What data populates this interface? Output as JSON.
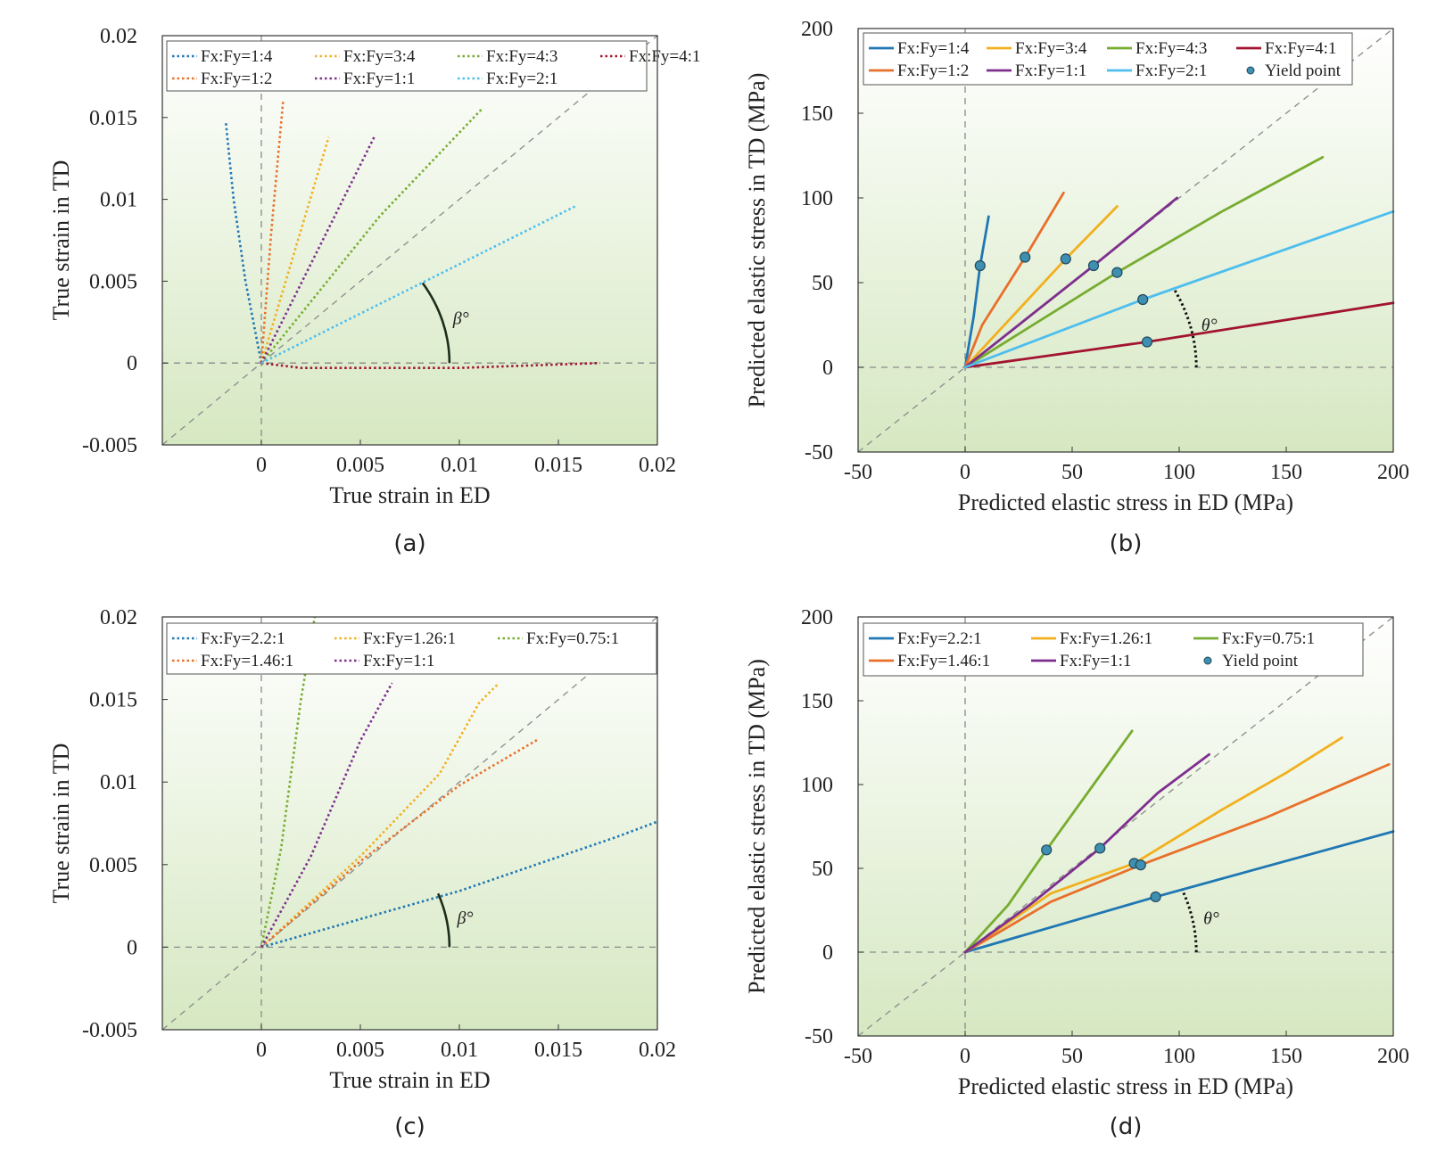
{
  "chart_data": [
    {
      "panel": "a",
      "caption": "(a)",
      "type": "line",
      "line_style": "dotted",
      "xlabel": "True strain in ED",
      "ylabel": "True strain in TD",
      "xlim": [
        -0.005,
        0.02
      ],
      "ylim": [
        -0.005,
        0.02
      ],
      "xticks": [
        0,
        0.005,
        0.01,
        0.015,
        0.02
      ],
      "xtick_labels": [
        "0",
        "0.005",
        "0.01",
        "0.015",
        "0.02"
      ],
      "yticks": [
        -0.005,
        0,
        0.005,
        0.01,
        0.015,
        0.02
      ],
      "ytick_labels": [
        "-0.005",
        "0",
        "0.005",
        "0.01",
        "0.015",
        "0.02"
      ],
      "grid": false,
      "legend_position": "top",
      "legend_columns": 4,
      "angle_label": "β°",
      "angle": {
        "r": 0.0095,
        "a0": 0,
        "a1": 31,
        "dashed": false
      },
      "series": [
        {
          "name": "Fx:Fy=1:4",
          "color": "#1f77b4",
          "points": [
            [
              0,
              0
            ],
            [
              -0.0008,
              0.005
            ],
            [
              -0.0014,
              0.01
            ],
            [
              -0.0018,
              0.0148
            ]
          ]
        },
        {
          "name": "Fx:Fy=3:4",
          "color": "#f2b01e",
          "points": [
            [
              0,
              0
            ],
            [
              0.0034,
              0.0138
            ]
          ]
        },
        {
          "name": "Fx:Fy=4:3",
          "color": "#77ac30",
          "points": [
            [
              0,
              0
            ],
            [
              0.006,
              0.009
            ],
            [
              0.0112,
              0.0156
            ]
          ]
        },
        {
          "name": "Fx:Fy=4:1",
          "color": "#a2142f",
          "points": [
            [
              0,
              0
            ],
            [
              0.002,
              -0.0003
            ],
            [
              0.01,
              -0.0003
            ],
            [
              0.0171,
              0
            ]
          ]
        },
        {
          "name": "Fx:Fy=1:2",
          "color": "#e8702a",
          "points": [
            [
              0,
              0
            ],
            [
              0.0005,
              0.008
            ],
            [
              0.0011,
              0.016
            ]
          ]
        },
        {
          "name": "Fx:Fy=1:1",
          "color": "#7e2f8e",
          "points": [
            [
              0,
              0
            ],
            [
              0.0057,
              0.0138
            ]
          ]
        },
        {
          "name": "Fx:Fy=2:1",
          "color": "#4dbeee",
          "points": [
            [
              0,
              0
            ],
            [
              0.0159,
              0.0096
            ]
          ]
        }
      ]
    },
    {
      "panel": "b",
      "caption": "(b)",
      "type": "line",
      "line_style": "solid",
      "xlabel": "Predicted elastic stress in ED (MPa)",
      "ylabel": "Predicted elastic stress in TD (MPa)",
      "xlim": [
        -50,
        200
      ],
      "ylim": [
        -50,
        200
      ],
      "xticks": [
        -50,
        0,
        50,
        100,
        150,
        200
      ],
      "xtick_labels": [
        "-50",
        "0",
        "50",
        "100",
        "150",
        "200"
      ],
      "yticks": [
        -50,
        0,
        50,
        100,
        150,
        200
      ],
      "ytick_labels": [
        "-50",
        "0",
        "50",
        "100",
        "150",
        "200"
      ],
      "grid": false,
      "legend_position": "top",
      "legend_columns": 4,
      "angle_label": "θ°",
      "angle": {
        "r": 108,
        "a0": 0,
        "a1": 25,
        "dashed": true
      },
      "series": [
        {
          "name": "Fx:Fy=1:4",
          "color": "#1f77b4",
          "points": [
            [
              0,
              0
            ],
            [
              4,
              30
            ],
            [
              7,
              60
            ],
            [
              11,
              89
            ]
          ]
        },
        {
          "name": "Fx:Fy=3:4",
          "color": "#f2b01e",
          "points": [
            [
              0,
              0
            ],
            [
              47,
              64
            ],
            [
              71,
              95
            ]
          ]
        },
        {
          "name": "Fx:Fy=4:3",
          "color": "#77ac30",
          "points": [
            [
              0,
              0
            ],
            [
              71,
              56
            ],
            [
              120,
              92
            ],
            [
              167,
              124
            ]
          ]
        },
        {
          "name": "Fx:Fy=4:1",
          "color": "#a2142f",
          "points": [
            [
              0,
              0
            ],
            [
              85,
              15
            ],
            [
              200,
              38
            ]
          ]
        },
        {
          "name": "Fx:Fy=1:2",
          "color": "#e8702a",
          "points": [
            [
              0,
              0
            ],
            [
              8,
              25
            ],
            [
              28,
              65
            ],
            [
              46,
              103
            ]
          ]
        },
        {
          "name": "Fx:Fy=1:1",
          "color": "#7e2f8e",
          "points": [
            [
              0,
              0
            ],
            [
              60,
              60
            ],
            [
              99,
              100
            ]
          ]
        },
        {
          "name": "Fx:Fy=2:1",
          "color": "#4dbeee",
          "points": [
            [
              0,
              0
            ],
            [
              83,
              40
            ],
            [
              200,
              92
            ]
          ]
        }
      ],
      "yield_points": {
        "name": "Yield point",
        "color": "#3f8fb0",
        "points": [
          [
            7,
            60
          ],
          [
            28,
            65
          ],
          [
            47,
            64
          ],
          [
            60,
            60
          ],
          [
            71,
            56
          ],
          [
            83,
            40
          ],
          [
            85,
            15
          ]
        ]
      }
    },
    {
      "panel": "c",
      "caption": "(c)",
      "type": "line",
      "line_style": "dotted",
      "xlabel": "True strain in ED",
      "ylabel": "True strain in TD",
      "xlim": [
        -0.005,
        0.02
      ],
      "ylim": [
        -0.005,
        0.02
      ],
      "xticks": [
        0,
        0.005,
        0.01,
        0.015,
        0.02
      ],
      "xtick_labels": [
        "0",
        "0.005",
        "0.01",
        "0.015",
        "0.02"
      ],
      "yticks": [
        -0.005,
        0,
        0.005,
        0.01,
        0.015,
        0.02
      ],
      "ytick_labels": [
        "-0.005",
        "0",
        "0.005",
        "0.01",
        "0.015",
        "0.02"
      ],
      "grid": false,
      "legend_position": "top",
      "legend_columns": 3,
      "angle_label": "β°",
      "angle": {
        "r": 0.0095,
        "a0": 0,
        "a1": 20,
        "dashed": false
      },
      "series": [
        {
          "name": "Fx:Fy=2.2:1",
          "color": "#1f77b4",
          "points": [
            [
              0,
              0
            ],
            [
              0.005,
              0.0017
            ],
            [
              0.01,
              0.0034
            ],
            [
              0.018,
              0.0067
            ],
            [
              0.02,
              0.0076
            ]
          ]
        },
        {
          "name": "Fx:Fy=1.26:1",
          "color": "#f2b01e",
          "points": [
            [
              0,
              0
            ],
            [
              0.005,
              0.0055
            ],
            [
              0.009,
              0.0105
            ],
            [
              0.011,
              0.0148
            ],
            [
              0.012,
              0.016
            ]
          ]
        },
        {
          "name": "Fx:Fy=0.75:1",
          "color": "#77ac30",
          "points": [
            [
              0,
              0
            ],
            [
              0.001,
              0.006
            ],
            [
              0.002,
              0.015
            ],
            [
              0.0027,
              0.02
            ]
          ]
        },
        {
          "name": "Fx:Fy=1.46:1",
          "color": "#e8702a",
          "points": [
            [
              0,
              0
            ],
            [
              0.005,
              0.0052
            ],
            [
              0.01,
              0.0098
            ],
            [
              0.014,
              0.0126
            ]
          ]
        },
        {
          "name": "Fx:Fy=1:1",
          "color": "#7e2f8e",
          "points": [
            [
              0,
              0
            ],
            [
              0.0025,
              0.0055
            ],
            [
              0.005,
              0.0125
            ],
            [
              0.0066,
              0.016
            ]
          ]
        }
      ]
    },
    {
      "panel": "d",
      "caption": "(d)",
      "type": "line",
      "line_style": "solid",
      "xlabel": "Predicted elastic stress in ED (MPa)",
      "ylabel": "Predicted elastic stress in TD (MPa)",
      "xlim": [
        -50,
        200
      ],
      "ylim": [
        -50,
        200
      ],
      "xticks": [
        -50,
        0,
        50,
        100,
        150,
        200
      ],
      "xtick_labels": [
        "-50",
        "0",
        "50",
        "100",
        "150",
        "200"
      ],
      "yticks": [
        -50,
        0,
        50,
        100,
        150,
        200
      ],
      "ytick_labels": [
        "-50",
        "0",
        "50",
        "100",
        "150",
        "200"
      ],
      "grid": false,
      "legend_position": "top",
      "legend_columns": 3,
      "angle_label": "θ°",
      "angle": {
        "r": 108,
        "a0": 0,
        "a1": 20,
        "dashed": true
      },
      "series": [
        {
          "name": "Fx:Fy=2.2:1",
          "color": "#1f77b4",
          "points": [
            [
              0,
              0
            ],
            [
              89,
              33
            ],
            [
              200,
              72
            ]
          ]
        },
        {
          "name": "Fx:Fy=1.26:1",
          "color": "#f2b01e",
          "points": [
            [
              0,
              0
            ],
            [
              40,
              35
            ],
            [
              79,
              53
            ],
            [
              120,
              85
            ],
            [
              150,
              107
            ],
            [
              176,
              128
            ]
          ]
        },
        {
          "name": "Fx:Fy=0.75:1",
          "color": "#77ac30",
          "points": [
            [
              0,
              0
            ],
            [
              20,
              28
            ],
            [
              38,
              61
            ],
            [
              60,
              100
            ],
            [
              78,
              132
            ]
          ]
        },
        {
          "name": "Fx:Fy=1.46:1",
          "color": "#e8702a",
          "points": [
            [
              0,
              0
            ],
            [
              40,
              30
            ],
            [
              82,
              52
            ],
            [
              140,
              80
            ],
            [
              198,
              112
            ]
          ]
        },
        {
          "name": "Fx:Fy=1:1",
          "color": "#7e2f8e",
          "points": [
            [
              0,
              0
            ],
            [
              30,
              28
            ],
            [
              63,
              62
            ],
            [
              90,
              95
            ],
            [
              114,
              118
            ]
          ]
        }
      ],
      "yield_points": {
        "name": "Yield point",
        "color": "#3f8fb0",
        "points": [
          [
            38,
            61
          ],
          [
            63,
            62
          ],
          [
            79,
            53
          ],
          [
            82,
            52
          ],
          [
            89,
            33
          ]
        ]
      }
    }
  ]
}
